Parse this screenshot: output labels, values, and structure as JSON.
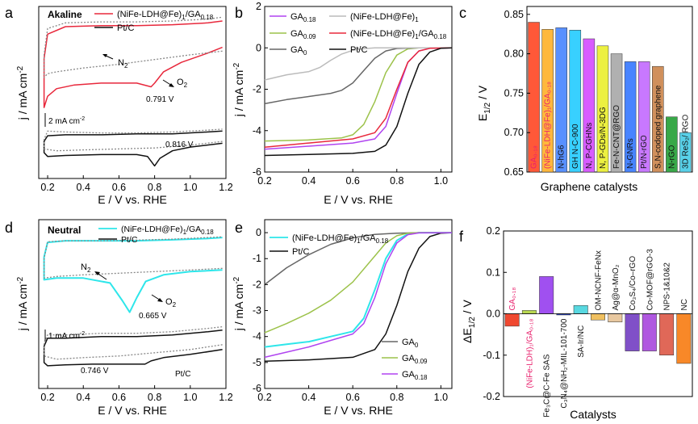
{
  "colors": {
    "red": "#e8283c",
    "black": "#111111",
    "cyan": "#2ee6ea",
    "purple": "#b044f0",
    "lightgray": "#bbbbbb",
    "green": "#9cc24a",
    "darkgray": "#666666",
    "magenta": "#e8206c"
  },
  "chart_data": [
    {
      "panel": "a",
      "type": "line",
      "title": "Akaline",
      "xlabel": "E / V vs. RHE",
      "ylabel": "j / mA cm⁻²",
      "xlim": [
        0.15,
        1.2
      ],
      "xticks": [
        0.2,
        0.4,
        0.6,
        0.8,
        1.0,
        1.2
      ],
      "xtick_labels": [
        "0.2",
        "0.4",
        "0.6",
        "0.8",
        "1.0",
        "1.2"
      ],
      "scale_bar": "2 mA cm⁻²",
      "legend": [
        "(NiFe-LDH@Fe)₁/GA₀.₁₈",
        "Pt/C"
      ],
      "annotations": [
        "N₂",
        "O₂",
        "0.791 V",
        "0.816 V"
      ],
      "series": [
        {
          "name": "(NiFe-LDH@Fe)1/GA0.18 O2",
          "color": "red",
          "style": "solid",
          "x": [
            1.18,
            1.1,
            0.95,
            0.85,
            0.8,
            0.78,
            0.7,
            0.5,
            0.35,
            0.25,
            0.2,
            0.18,
            0.18,
            0.2,
            0.3,
            0.5,
            0.7,
            0.9,
            1.1,
            1.18
          ],
          "y": [
            0.3,
            0.0,
            -0.5,
            -1.0,
            -1.6,
            -1.8,
            -1.6,
            -1.6,
            -1.7,
            -1.9,
            -2.3,
            -2.9,
            -0.3,
            1.0,
            1.4,
            1.45,
            1.45,
            1.5,
            1.6,
            1.7
          ]
        },
        {
          "name": "(NiFe-LDH@Fe)1/GA0.18 N2",
          "color": "gray",
          "style": "dotted",
          "x": [
            1.18,
            1.0,
            0.8,
            0.6,
            0.4,
            0.25,
            0.2,
            0.18,
            0.18,
            0.2,
            0.3,
            0.5,
            0.7,
            0.9,
            1.1,
            1.18
          ],
          "y": [
            0.1,
            -0.1,
            -0.35,
            -0.6,
            -0.8,
            -1.0,
            -1.1,
            -1.3,
            -0.1,
            1.3,
            1.6,
            1.65,
            1.65,
            1.7,
            1.8,
            1.9
          ]
        },
        {
          "name": "Pt/C O2",
          "color": "black",
          "style": "solid",
          "x": [
            1.18,
            1.0,
            0.9,
            0.83,
            0.8,
            0.76,
            0.7,
            0.5,
            0.3,
            0.2,
            0.18,
            0.18,
            0.2,
            0.3,
            0.5,
            0.7,
            0.9,
            1.1,
            1.18
          ],
          "y": [
            -4.8,
            -5.0,
            -5.2,
            -5.6,
            -6.0,
            -5.5,
            -5.4,
            -5.4,
            -5.45,
            -5.5,
            -5.3,
            -4.7,
            -4.4,
            -4.35,
            -4.35,
            -4.3,
            -4.3,
            -4.2,
            -4.15
          ]
        },
        {
          "name": "Pt/C N2",
          "color": "gray",
          "style": "dotted",
          "x": [
            1.18,
            1.0,
            0.8,
            0.6,
            0.4,
            0.25,
            0.18,
            0.18,
            0.2,
            0.3,
            0.5,
            0.7,
            0.9,
            1.1,
            1.18
          ],
          "y": [
            -4.7,
            -4.9,
            -5.05,
            -5.1,
            -5.15,
            -5.2,
            -5.1,
            -4.6,
            -4.15,
            -4.2,
            -4.25,
            -4.25,
            -4.2,
            -4.1,
            -4.05
          ]
        }
      ]
    },
    {
      "panel": "b",
      "type": "line",
      "xlabel": "E / V vs. RHE",
      "ylabel": "j / mA cm⁻²",
      "xlim": [
        0.2,
        1.05
      ],
      "ylim": [
        -6,
        2
      ],
      "xticks": [
        0.2,
        0.4,
        0.6,
        0.8,
        1.0
      ],
      "xtick_labels": [
        "0.2",
        "0.4",
        "0.6",
        "0.8",
        "1.0"
      ],
      "yticks": [
        -6,
        -4,
        -2,
        0,
        2
      ],
      "ytick_labels": [
        "-6",
        "-4",
        "-2",
        "0",
        "2"
      ],
      "series": [
        {
          "name": "GA₀.₁₈",
          "color": "purple",
          "x": [
            0.2,
            0.4,
            0.6,
            0.7,
            0.75,
            0.8,
            0.85,
            0.9,
            0.95,
            1.05
          ],
          "y": [
            -4.9,
            -4.75,
            -4.6,
            -4.4,
            -3.8,
            -2.2,
            -0.7,
            -0.15,
            -0.02,
            0
          ]
        },
        {
          "name": "GA₀.₀₉",
          "color": "green",
          "x": [
            0.2,
            0.4,
            0.55,
            0.6,
            0.65,
            0.7,
            0.75,
            0.8,
            0.85,
            0.9,
            1.05
          ],
          "y": [
            -4.5,
            -4.45,
            -4.35,
            -4.2,
            -3.7,
            -2.6,
            -1.2,
            -0.35,
            -0.05,
            0,
            0
          ]
        },
        {
          "name": "GA₀",
          "color": "darkgray",
          "x": [
            0.2,
            0.3,
            0.4,
            0.5,
            0.55,
            0.6,
            0.65,
            0.7,
            0.75,
            0.8,
            0.9,
            1.05
          ],
          "y": [
            -2.7,
            -2.5,
            -2.35,
            -2.2,
            -2.05,
            -1.7,
            -1.1,
            -0.5,
            -0.15,
            -0.03,
            0,
            0
          ]
        },
        {
          "name": "(NiFe-LDH@Fe)₁",
          "color": "lightgray",
          "x": [
            0.2,
            0.3,
            0.4,
            0.45,
            0.5,
            0.55,
            0.6,
            0.65,
            0.7,
            0.8,
            1.05
          ],
          "y": [
            -1.55,
            -1.3,
            -1.15,
            -0.95,
            -0.6,
            -0.3,
            -0.12,
            -0.04,
            0,
            0,
            0
          ]
        },
        {
          "name": "(NiFe-LDH@Fe)₁/GA₀.₁₈",
          "color": "red",
          "x": [
            0.2,
            0.4,
            0.6,
            0.7,
            0.75,
            0.8,
            0.85,
            0.9,
            0.95,
            1.05
          ],
          "y": [
            -4.8,
            -4.6,
            -4.4,
            -4.1,
            -3.4,
            -2.0,
            -0.7,
            -0.15,
            -0.02,
            0
          ]
        },
        {
          "name": "Pt/C",
          "color": "black",
          "x": [
            0.2,
            0.4,
            0.6,
            0.7,
            0.75,
            0.8,
            0.85,
            0.9,
            0.95,
            1.0,
            1.05
          ],
          "y": [
            -5.2,
            -5.15,
            -5.1,
            -5.0,
            -4.7,
            -3.8,
            -2.2,
            -0.8,
            -0.2,
            -0.02,
            0
          ]
        }
      ]
    },
    {
      "panel": "c",
      "type": "bar",
      "xlabel": "Graphene catalysts",
      "ylabel": "E₁/₂ / V",
      "ylim": [
        0.65,
        0.86
      ],
      "yticks": [
        0.65,
        0.7,
        0.75,
        0.8,
        0.85
      ],
      "ytick_labels": [
        "0.65",
        "0.70",
        "0.75",
        "0.80",
        "0.85"
      ],
      "categories": [
        "GA₀.₁₈",
        "(NiFe-LDH@Fe)₁/GA₀.₁₈",
        "N-hG6",
        "GH N-C-900",
        "N, P-CGHNs",
        "N, P-GDs/N-3DG",
        "Fe-N-CNT@RGO",
        "N-GNRs",
        "Pt/N-rGO",
        "S,N-codoped graphene",
        "N-rGO",
        "3D ReS₂/ RGO"
      ],
      "values": [
        0.84,
        0.831,
        0.833,
        0.83,
        0.819,
        0.81,
        0.8,
        0.79,
        0.79,
        0.784,
        0.72,
        0.7
      ],
      "bar_colors": [
        "#ff5838",
        "#ffb83c",
        "#5890ff",
        "#38d0ff",
        "#d85cff",
        "#ecf040",
        "#b0b0b0",
        "#4884ff",
        "#c878ff",
        "#d0905c",
        "#38a848",
        "#58d0e8"
      ],
      "label_colors": [
        "#e8206c",
        "#e8206c",
        "#111111",
        "#111111",
        "#111111",
        "#111111",
        "#111111",
        "#111111",
        "#111111",
        "#111111",
        "#111111",
        "#111111"
      ]
    },
    {
      "panel": "d",
      "type": "line",
      "title": "Neutral",
      "xlabel": "E / V vs. RHE",
      "ylabel": "j / mA cm⁻²",
      "xlim": [
        0.15,
        1.2
      ],
      "xticks": [
        0.2,
        0.4,
        0.6,
        0.8,
        1.0,
        1.2
      ],
      "xtick_labels": [
        "0.2",
        "0.4",
        "0.6",
        "0.8",
        "1.0",
        "1.2"
      ],
      "scale_bar": "1 mA cm⁻²",
      "legend": [
        "(NiFe-LDH@Fe)₁/GA₀.₁₈",
        "Pt/C"
      ],
      "annotations": [
        "N₂",
        "O₂",
        "0.665 V",
        "0.746 V",
        "Pt/C"
      ],
      "series": [
        {
          "name": "(NiFe-LDH@Fe)1/GA0.18 O2",
          "color": "cyan",
          "style": "solid",
          "x": [
            1.18,
            1.0,
            0.85,
            0.75,
            0.7,
            0.66,
            0.62,
            0.55,
            0.4,
            0.25,
            0.18,
            0.18,
            0.2,
            0.3,
            0.5,
            0.7,
            0.9,
            1.1,
            1.18
          ],
          "y": [
            -0.05,
            -0.1,
            -0.2,
            -0.4,
            -0.9,
            -1.35,
            -1.0,
            -0.45,
            -0.3,
            -0.3,
            -0.35,
            0.35,
            0.8,
            0.85,
            0.85,
            0.85,
            0.88,
            0.92,
            0.95
          ]
        },
        {
          "name": "(NiFe-LDH@Fe)1/GA0.18 N2",
          "color": "gray",
          "style": "dotted",
          "x": [
            1.18,
            1.0,
            0.8,
            0.6,
            0.4,
            0.25,
            0.18,
            0.18,
            0.2,
            0.3,
            0.5,
            0.7,
            0.9,
            1.1,
            1.18
          ],
          "y": [
            0.0,
            -0.05,
            -0.1,
            -0.15,
            -0.2,
            -0.25,
            -0.3,
            0.3,
            0.82,
            0.85,
            0.85,
            0.87,
            0.9,
            0.95,
            0.97
          ]
        },
        {
          "name": "Pt/C O2",
          "color": "black",
          "style": "solid",
          "x": [
            1.18,
            1.0,
            0.85,
            0.78,
            0.746,
            0.7,
            0.6,
            0.45,
            0.3,
            0.2,
            0.18,
            0.18,
            0.2,
            0.3,
            0.5,
            0.7,
            0.9,
            1.1,
            1.18
          ],
          "y": [
            -2.5,
            -2.65,
            -2.75,
            -2.85,
            -2.95,
            -2.95,
            -2.95,
            -2.95,
            -2.97,
            -3.0,
            -2.9,
            -2.4,
            -2.15,
            -2.15,
            -2.1,
            -2.1,
            -2.05,
            -1.95,
            -1.9
          ]
        },
        {
          "name": "Pt/C N2",
          "color": "gray",
          "style": "dotted",
          "x": [
            1.18,
            1.0,
            0.8,
            0.6,
            0.4,
            0.25,
            0.18,
            0.18,
            0.2,
            0.3,
            0.5,
            0.7,
            0.9,
            1.1,
            1.18
          ],
          "y": [
            -2.35,
            -2.5,
            -2.6,
            -2.7,
            -2.75,
            -2.8,
            -2.7,
            -2.3,
            -2.05,
            -2.05,
            -2.0,
            -2.0,
            -1.95,
            -1.85,
            -1.8
          ]
        }
      ]
    },
    {
      "panel": "e",
      "type": "line",
      "xlabel": "E / V vs. RHE",
      "ylabel": "j / mA cm⁻²",
      "xlim": [
        0.2,
        1.05
      ],
      "ylim": [
        -6,
        0.5
      ],
      "xticks": [
        0.2,
        0.4,
        0.6,
        0.8,
        1.0
      ],
      "xtick_labels": [
        "0.2",
        "0.4",
        "0.6",
        "0.8",
        "1.0"
      ],
      "yticks": [
        -6,
        -5,
        -4,
        -3,
        -2,
        -1,
        0
      ],
      "ytick_labels": [
        "-6",
        "-5",
        "-4",
        "-3",
        "-2",
        "-1",
        "0"
      ],
      "series": [
        {
          "name": "(NiFe-LDH@Fe)₁/GA₀.₁₈",
          "color": "cyan",
          "x": [
            0.2,
            0.3,
            0.4,
            0.5,
            0.6,
            0.65,
            0.7,
            0.75,
            0.8,
            0.85,
            0.9,
            1.05
          ],
          "y": [
            -4.4,
            -4.3,
            -4.2,
            -4.0,
            -3.8,
            -3.3,
            -2.2,
            -1.0,
            -0.3,
            -0.05,
            0,
            0
          ]
        },
        {
          "name": "Pt/C",
          "color": "black",
          "x": [
            0.2,
            0.4,
            0.6,
            0.7,
            0.75,
            0.8,
            0.85,
            0.9,
            0.95,
            1.0,
            1.05
          ],
          "y": [
            -4.95,
            -4.9,
            -4.8,
            -4.5,
            -3.9,
            -2.8,
            -1.5,
            -0.6,
            -0.15,
            -0.02,
            0
          ]
        },
        {
          "name": "GA₀",
          "color": "darkgray",
          "x": [
            0.2,
            0.3,
            0.4,
            0.5,
            0.6,
            0.7,
            0.8,
            0.9,
            1.05
          ],
          "y": [
            -2.0,
            -1.35,
            -0.85,
            -0.45,
            -0.2,
            -0.07,
            -0.02,
            0,
            0
          ]
        },
        {
          "name": "GA₀.₀₉",
          "color": "green",
          "x": [
            0.2,
            0.3,
            0.4,
            0.5,
            0.6,
            0.7,
            0.75,
            0.8,
            0.85,
            0.9,
            1.05
          ],
          "y": [
            -3.85,
            -3.5,
            -3.1,
            -2.6,
            -1.9,
            -0.9,
            -0.4,
            -0.12,
            -0.02,
            0,
            0
          ]
        },
        {
          "name": "GA₀.₁₈",
          "color": "purple",
          "x": [
            0.2,
            0.3,
            0.4,
            0.5,
            0.6,
            0.65,
            0.7,
            0.75,
            0.8,
            0.85,
            0.9,
            1.05
          ],
          "y": [
            -4.8,
            -4.6,
            -4.4,
            -4.15,
            -3.9,
            -3.5,
            -2.5,
            -1.2,
            -0.4,
            -0.08,
            -0.01,
            0
          ]
        }
      ]
    },
    {
      "panel": "f",
      "type": "bar",
      "xlabel": "Catalysts",
      "ylabel": "ΔE₁/₂ / V",
      "ylim": [
        -0.2,
        0.2
      ],
      "yticks": [
        -0.2,
        -0.1,
        0.0,
        0.1,
        0.2
      ],
      "ytick_labels": [
        "-0.2",
        "-0.1",
        "0.0",
        "0.1",
        "0.2"
      ],
      "categories": [
        "GA₀.₁₈",
        "(NiFe-LDH)₁/GA₀.₁₈",
        "Fe₃C@C-Fe SAS",
        "C₃N₄@NH₂-MIL-101-700",
        "SA-Ir/NC",
        "OM-NCNF-FeNx",
        "Ag@α-MnO₂",
        "Co₃S₄/Co–rGO",
        "Co-MOF@rGO-3",
        "NPS-1&10&2",
        "NC"
      ],
      "values": [
        -0.03,
        0.008,
        0.09,
        0.0,
        0.02,
        -0.015,
        -0.02,
        -0.09,
        -0.09,
        -0.1,
        -0.12
      ],
      "bar_colors": [
        "#f04830",
        "#b8d850",
        "#a050f0",
        "#2840c0",
        "#58d8e0",
        "#f0c060",
        "#e8c8a0",
        "#8050c8",
        "#b058e0",
        "#e06858",
        "#f88828"
      ],
      "label_colors": [
        "#e8206c",
        "#e8206c",
        "#111111",
        "#111111",
        "#111111",
        "#111111",
        "#111111",
        "#111111",
        "#111111",
        "#111111",
        "#111111"
      ]
    }
  ]
}
